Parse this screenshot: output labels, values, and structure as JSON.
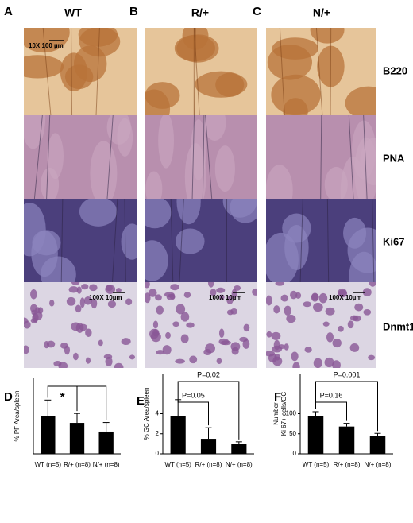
{
  "panels": [
    {
      "label": "A",
      "header": "WT"
    },
    {
      "label": "B",
      "header": "R/+"
    },
    {
      "label": "C",
      "header": "N/+"
    }
  ],
  "rows": [
    "B220",
    "PNA",
    "Ki67",
    "Dnmt1"
  ],
  "scale_labels": {
    "low": "10X 100 µm",
    "high": [
      "100X 10µm",
      "100X 10µm",
      "100X 10µm"
    ]
  },
  "chart_data": [
    {
      "panel": "D",
      "type": "bar",
      "y_label": "% PF Area/spleen",
      "categories": [
        "WT (n=5)",
        "R/+ (n=8)",
        "N/+ (n=8)"
      ],
      "values": [
        20,
        16.4,
        11.8
      ],
      "errors": [
        8.5,
        5,
        4.8
      ],
      "color": "#000000",
      "ylim": [
        0,
        40
      ],
      "bracket_labels": {
        "inner": "*"
      }
    },
    {
      "panel": "E",
      "type": "bar",
      "y_label": "% GC Area/spleen",
      "categories": [
        "WT (n=5)",
        "R/+ (n=8)",
        "N/+ (n=8)"
      ],
      "values": [
        3.8,
        1.5,
        1.0
      ],
      "errors": [
        1.6,
        1.1,
        0.2
      ],
      "color": "#000000",
      "ylim": [
        0,
        8
      ],
      "yticks": [
        0,
        2,
        4
      ],
      "bracket_labels": {
        "outer": "P=0.02",
        "inner": "P=0.05"
      }
    },
    {
      "panel": "F",
      "type": "bar",
      "y_label": [
        "Number",
        "Ki 67+ cells/GC"
      ],
      "categories": [
        "WT (n=5)",
        "R/+ (n=8)",
        "N/+ (n=8)"
      ],
      "values": [
        95,
        68,
        45
      ],
      "errors": [
        10,
        8,
        6
      ],
      "color": "#000000",
      "ylim": [
        0,
        200
      ],
      "yticks": [
        0,
        50,
        100
      ],
      "bracket_labels": {
        "outer": "P=0.001",
        "inner": "P=0.16"
      }
    }
  ]
}
